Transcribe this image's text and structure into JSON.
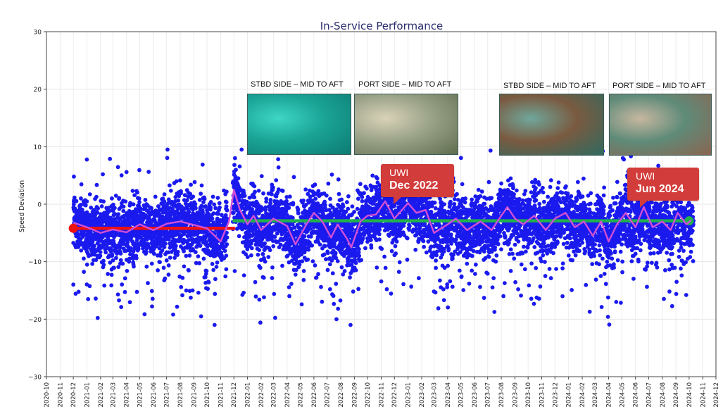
{
  "chart_data": {
    "type": "scatter",
    "title": "In-Service Performance",
    "ylabel": "Speed Deviation",
    "xlabel": "",
    "ylim": [
      -30,
      30
    ],
    "yticks": [
      -30,
      -20,
      -10,
      0,
      10,
      20,
      30
    ],
    "ytick_labels": [
      "−30",
      "−20",
      "−10",
      "0",
      "10",
      "20",
      "30"
    ],
    "xlim": [
      "2020-10",
      "2024-12"
    ],
    "xtick_labels": [
      "2020-10",
      "2020-11",
      "2020-12",
      "2021-01",
      "2021-02",
      "2021-03",
      "2021-04",
      "2021-05",
      "2021-06",
      "2021-07",
      "2021-08",
      "2021-09",
      "2021-10",
      "2021-11",
      "2021-12",
      "2022-01",
      "2022-02",
      "2022-03",
      "2022-04",
      "2022-05",
      "2022-06",
      "2022-07",
      "2022-08",
      "2022-09",
      "2022-10",
      "2022-11",
      "2022-12",
      "2023-01",
      "2023-02",
      "2023-03",
      "2023-04",
      "2023-05",
      "2023-06",
      "2023-07",
      "2023-08",
      "2023-09",
      "2023-10",
      "2023-11",
      "2023-12",
      "2024-01",
      "2024-02",
      "2024-03",
      "2024-04",
      "2024-05",
      "2024-06",
      "2024-07",
      "2024-08",
      "2024-09",
      "2024-10",
      "2024-11",
      "2024-12"
    ],
    "grid": true,
    "colors": {
      "points": "#1a1aee",
      "rolling_mean": "#d24fd6",
      "baseline_1": "#ee1111",
      "baseline_2": "#22b14c",
      "axis_title": "#2b2d6e"
    },
    "series": [
      {
        "kind": "baseline",
        "start": "2020-12",
        "end": "2021-12",
        "value": -4.2
      },
      {
        "kind": "baseline",
        "start": "2021-12",
        "end": "2024-10",
        "value": -2.9
      },
      {
        "kind": "rolling_mean",
        "points": [
          [
            "2020-12-01",
            -3.2
          ],
          [
            "2021-01-01",
            -4.0
          ],
          [
            "2021-02-01",
            -5.0
          ],
          [
            "2021-03-01",
            -4.4
          ],
          [
            "2021-04-01",
            -4.9
          ],
          [
            "2021-05-01",
            -3.5
          ],
          [
            "2021-06-01",
            -4.5
          ],
          [
            "2021-07-01",
            -3.4
          ],
          [
            "2021-08-01",
            -3.0
          ],
          [
            "2021-09-01",
            -3.6
          ],
          [
            "2021-10-01",
            -4.2
          ],
          [
            "2021-11-01",
            -6.5
          ],
          [
            "2021-11-20",
            -3.0
          ],
          [
            "2021-12-01",
            2.5
          ],
          [
            "2021-12-15",
            -1.0
          ],
          [
            "2022-01-01",
            -3.5
          ],
          [
            "2022-01-15",
            -2.0
          ],
          [
            "2022-02-01",
            -4.5
          ],
          [
            "2022-03-01",
            -2.5
          ],
          [
            "2022-04-01",
            -3.8
          ],
          [
            "2022-04-20",
            -7.0
          ],
          [
            "2022-05-15",
            -3.5
          ],
          [
            "2022-06-01",
            -1.5
          ],
          [
            "2022-06-20",
            -3.0
          ],
          [
            "2022-07-10",
            -5.8
          ],
          [
            "2022-07-25",
            -3.5
          ],
          [
            "2022-08-15",
            -6.0
          ],
          [
            "2022-08-25",
            -7.5
          ],
          [
            "2022-09-15",
            -3.0
          ],
          [
            "2022-10-01",
            -2.0
          ],
          [
            "2022-10-20",
            -1.8
          ],
          [
            "2022-11-10",
            0.5
          ],
          [
            "2022-12-01",
            -2.5
          ],
          [
            "2023-01-01",
            0.2
          ],
          [
            "2023-01-20",
            -1.5
          ],
          [
            "2023-02-10",
            -1.0
          ],
          [
            "2023-03-01",
            -5.0
          ],
          [
            "2023-04-01",
            -3.5
          ],
          [
            "2023-04-20",
            -2.5
          ],
          [
            "2023-05-15",
            -4.5
          ],
          [
            "2023-06-15",
            -3.0
          ],
          [
            "2023-07-10",
            -4.5
          ],
          [
            "2023-08-01",
            -2.0
          ],
          [
            "2023-08-15",
            -0.5
          ],
          [
            "2023-09-01",
            -2.5
          ],
          [
            "2023-09-20",
            -3.5
          ],
          [
            "2023-10-15",
            -2.0
          ],
          [
            "2023-11-10",
            -4.5
          ],
          [
            "2023-12-01",
            -2.5
          ],
          [
            "2023-12-25",
            -1.5
          ],
          [
            "2024-01-15",
            -4.0
          ],
          [
            "2024-02-05",
            -3.0
          ],
          [
            "2024-02-25",
            -5.5
          ],
          [
            "2024-03-15",
            -3.0
          ],
          [
            "2024-04-01",
            -6.5
          ],
          [
            "2024-04-20",
            -3.5
          ],
          [
            "2024-05-10",
            -1.5
          ],
          [
            "2024-06-01",
            -4.0
          ],
          [
            "2024-06-20",
            -0.5
          ],
          [
            "2024-07-10",
            -4.0
          ],
          [
            "2024-08-01",
            -3.0
          ],
          [
            "2024-08-20",
            -4.5
          ],
          [
            "2024-09-05",
            -1.5
          ],
          [
            "2024-09-25",
            -3.5
          ],
          [
            "2024-10-05",
            -2.8
          ]
        ]
      },
      {
        "kind": "daily_points",
        "start": "2020-12-01",
        "end": "2024-10-10",
        "gap_start": "2021-11-15",
        "gap_end": "2021-11-28",
        "approx_min": -21,
        "approx_max": 9.5
      }
    ],
    "annotations": [
      {
        "text_line1": "UWI",
        "text_line2": "Dec 2022",
        "date": "2022-12"
      },
      {
        "text_line1": "UWI",
        "text_line2": "Jun 2024",
        "date": "2024-06"
      }
    ]
  },
  "photos": [
    {
      "label": "STBD SIDE – MID TO AFT",
      "period": "Dec 2022",
      "palette": [
        "#0d7a72",
        "#3ed6c4",
        "#1aa496"
      ]
    },
    {
      "label": "PORT SIDE – MID TO AFT",
      "period": "Dec 2022",
      "palette": [
        "#5e6d4e",
        "#d9d3b8",
        "#9aa288"
      ]
    },
    {
      "label": "STBD SIDE – MID TO AFT",
      "period": "Jun 2024",
      "palette": [
        "#2e6a60",
        "#6fa79b",
        "#7a5a40"
      ]
    },
    {
      "label": "PORT SIDE – MID TO AFT",
      "period": "Jun 2024",
      "palette": [
        "#8a6450",
        "#c7b7a0",
        "#5f8b79"
      ]
    }
  ]
}
